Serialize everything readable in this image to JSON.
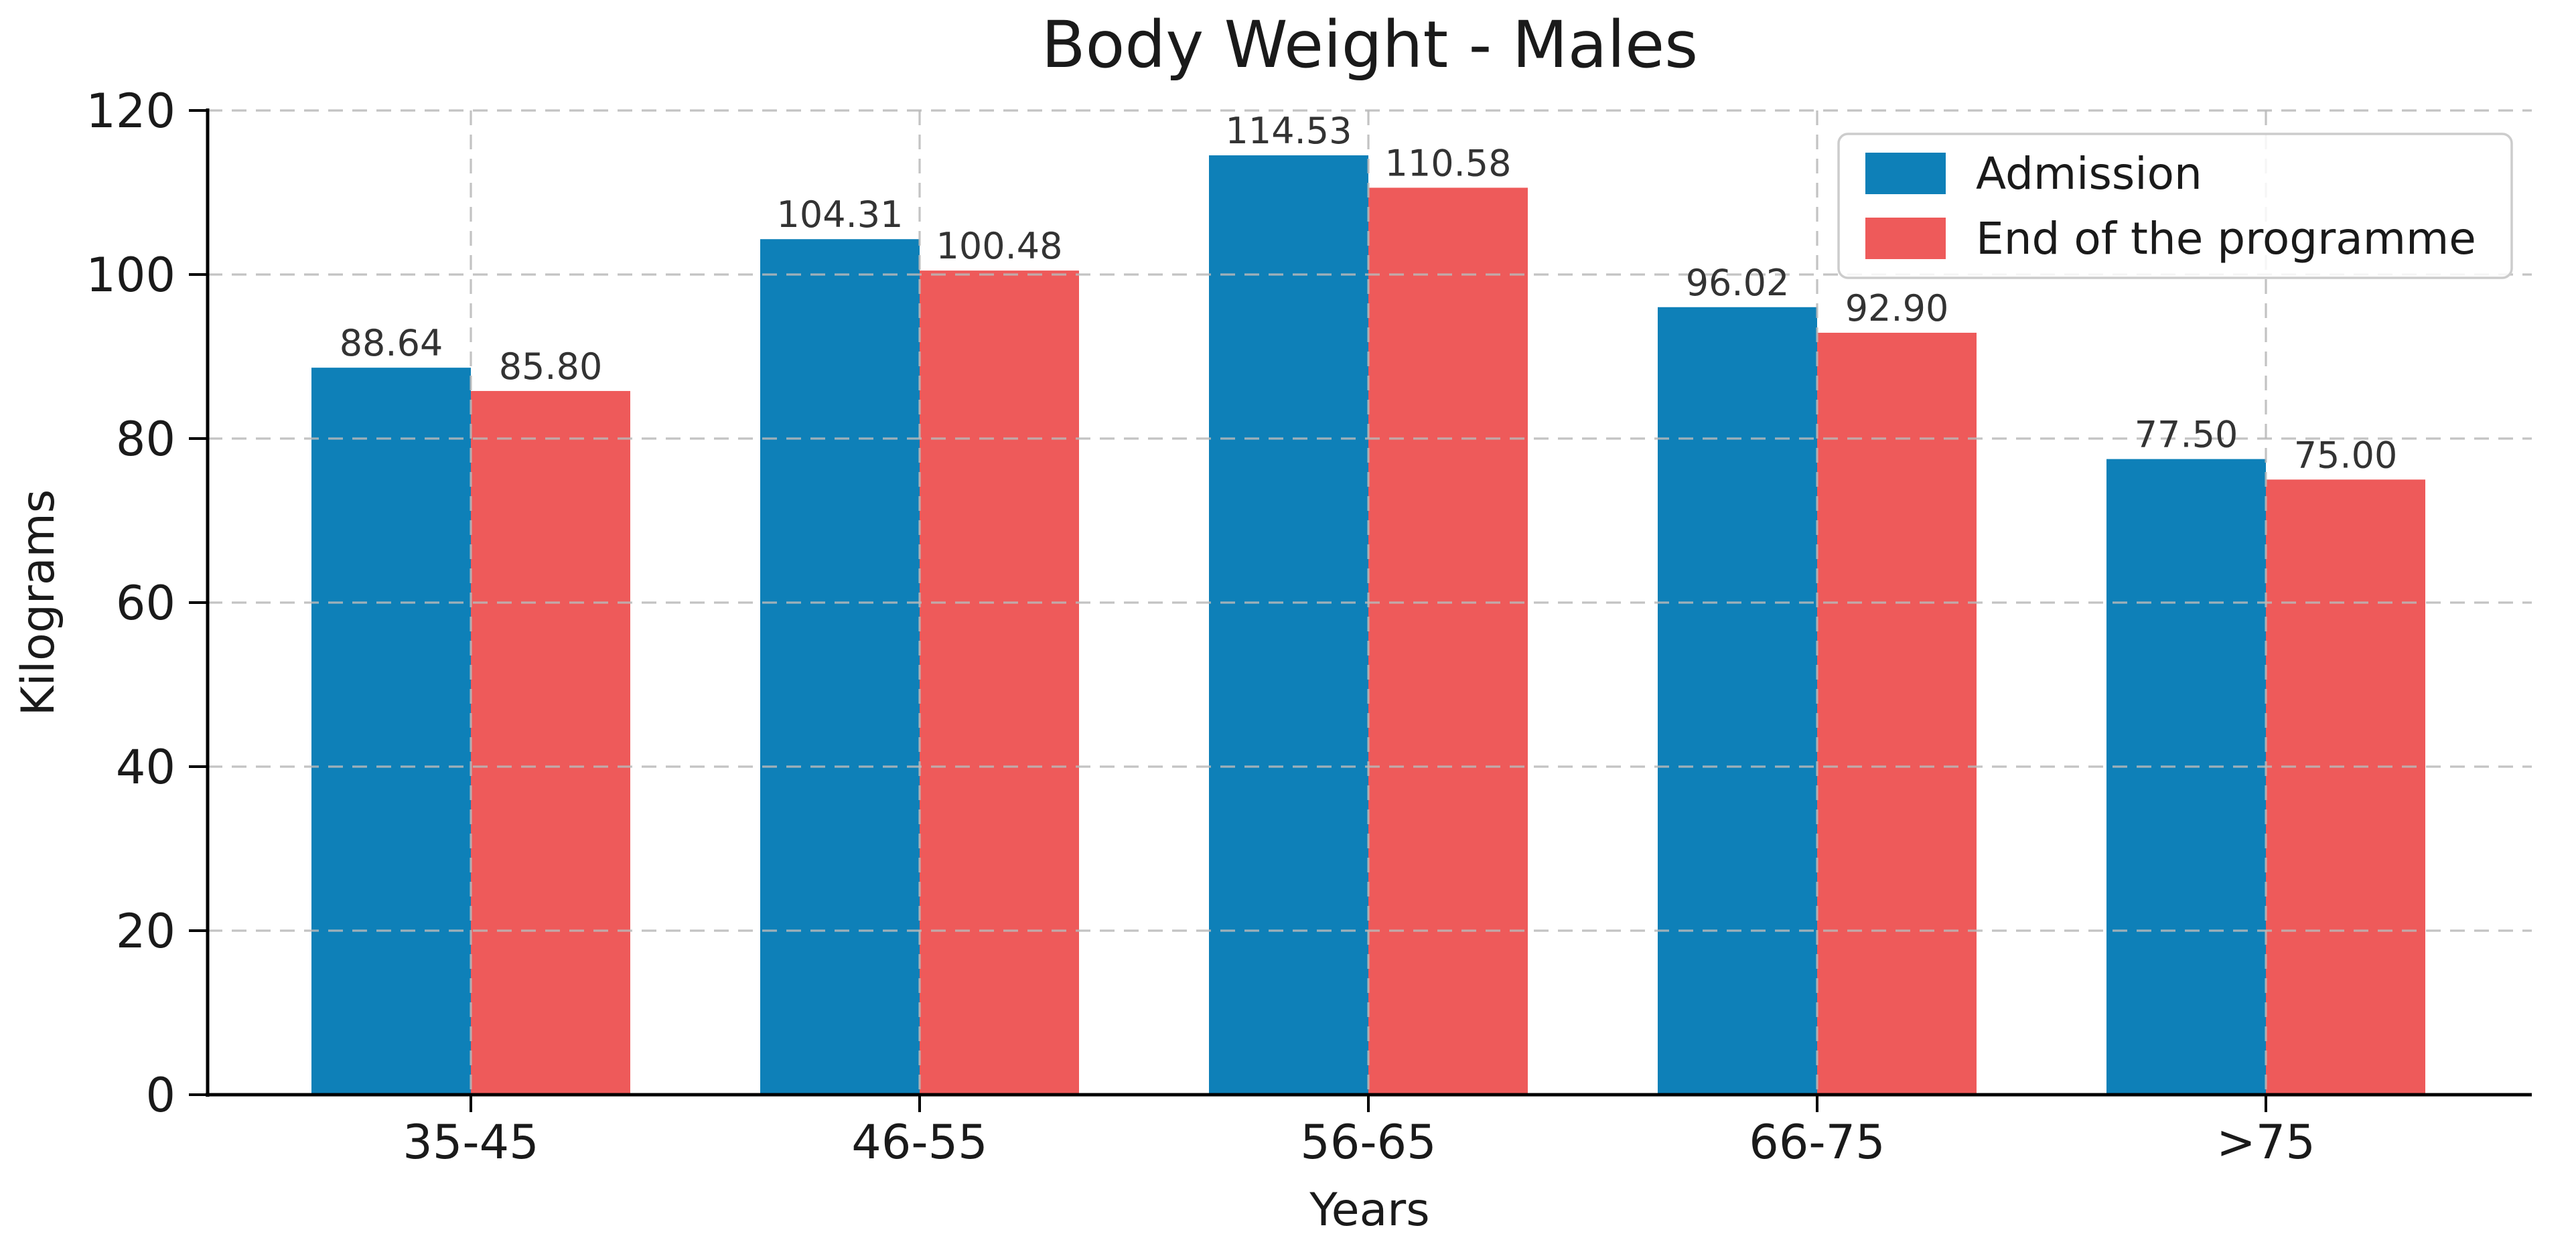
{
  "figure": {
    "background": "#ffffff"
  },
  "chart_data": {
    "type": "bar",
    "title": "Body Weight - Males",
    "xlabel": "Years",
    "ylabel": "Kilograms",
    "categories": [
      "35-45",
      "46-55",
      "56-65",
      "66-75",
      ">75"
    ],
    "series": [
      {
        "name": "Admission",
        "color": "#0e80b8",
        "values": [
          88.64,
          104.31,
          114.53,
          96.02,
          77.5
        ],
        "value_labels": [
          "88.64",
          "104.31",
          "114.53",
          "96.02",
          "77.50"
        ]
      },
      {
        "name": "End of the programme",
        "color": "#ee5a5a",
        "values": [
          85.8,
          100.48,
          110.58,
          92.9,
          75.0
        ],
        "value_labels": [
          "85.80",
          "100.48",
          "110.58",
          "92.90",
          "75.00"
        ]
      }
    ],
    "ylim": [
      0,
      120
    ],
    "yticks": [
      0,
      20,
      40,
      60,
      80,
      100,
      120
    ],
    "ytick_labels": [
      "0",
      "20",
      "40",
      "60",
      "80",
      "100",
      "120"
    ],
    "grid": {
      "horizontal": true,
      "vertical": true,
      "style": "dashed",
      "color": "#b8b8b8"
    },
    "legend": {
      "position": "upper right",
      "entries": [
        "Admission",
        "End of the programme"
      ],
      "border_color": "#cccccc",
      "background": "#ffffff"
    },
    "axis_color": "#000000",
    "text_color": "#1a1a1a",
    "value_label_color": "#333333"
  }
}
